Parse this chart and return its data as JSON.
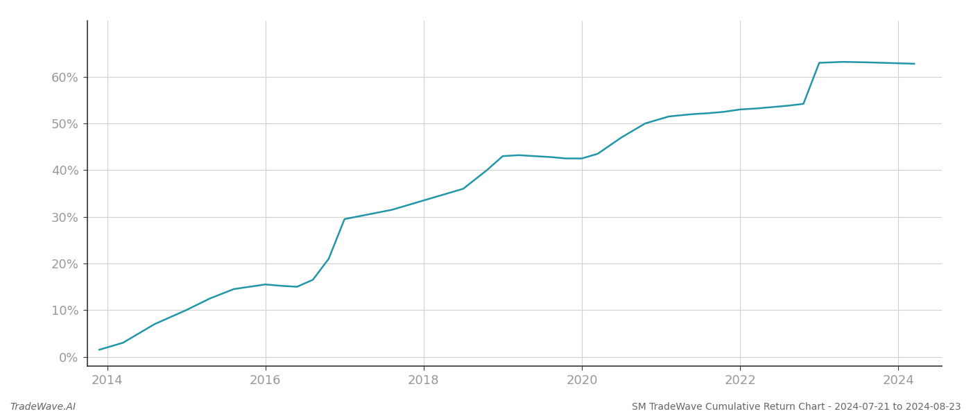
{
  "x_values": [
    2013.9,
    2014.2,
    2014.6,
    2015.0,
    2015.3,
    2015.6,
    2016.0,
    2016.2,
    2016.4,
    2016.6,
    2016.8,
    2017.0,
    2017.3,
    2017.6,
    2017.9,
    2018.2,
    2018.5,
    2018.8,
    2019.0,
    2019.2,
    2019.4,
    2019.6,
    2019.8,
    2020.0,
    2020.2,
    2020.5,
    2020.8,
    2021.1,
    2021.4,
    2021.6,
    2021.8,
    2022.0,
    2022.2,
    2022.4,
    2022.6,
    2022.8,
    2023.0,
    2023.3,
    2023.6,
    2023.8,
    2024.0,
    2024.2
  ],
  "y_values": [
    1.5,
    3.0,
    7.0,
    10.0,
    12.5,
    14.5,
    15.5,
    15.2,
    15.0,
    16.5,
    21.0,
    29.5,
    30.5,
    31.5,
    33.0,
    34.5,
    36.0,
    40.0,
    43.0,
    43.2,
    43.0,
    42.8,
    42.5,
    42.5,
    43.5,
    47.0,
    50.0,
    51.5,
    52.0,
    52.2,
    52.5,
    53.0,
    53.2,
    53.5,
    53.8,
    54.2,
    63.0,
    63.2,
    63.1,
    63.0,
    62.9,
    62.8
  ],
  "line_color": "#2196a8",
  "line_width": 1.8,
  "bg_color": "#ffffff",
  "grid_color": "#d0d0d0",
  "tick_color": "#999999",
  "axis_color": "#333333",
  "footer_left": "TradeWave.AI",
  "footer_right": "SM TradeWave Cumulative Return Chart - 2024-07-21 to 2024-08-23",
  "ytick_labels": [
    "0%",
    "10%",
    "20%",
    "30%",
    "40%",
    "50%",
    "60%"
  ],
  "ytick_values": [
    0,
    10,
    20,
    30,
    40,
    50,
    60
  ],
  "xtick_labels": [
    "2014",
    "2016",
    "2018",
    "2020",
    "2022",
    "2024"
  ],
  "xtick_values": [
    2014,
    2016,
    2018,
    2020,
    2022,
    2024
  ],
  "xlim": [
    2013.75,
    2024.55
  ],
  "ylim": [
    -2,
    72
  ]
}
